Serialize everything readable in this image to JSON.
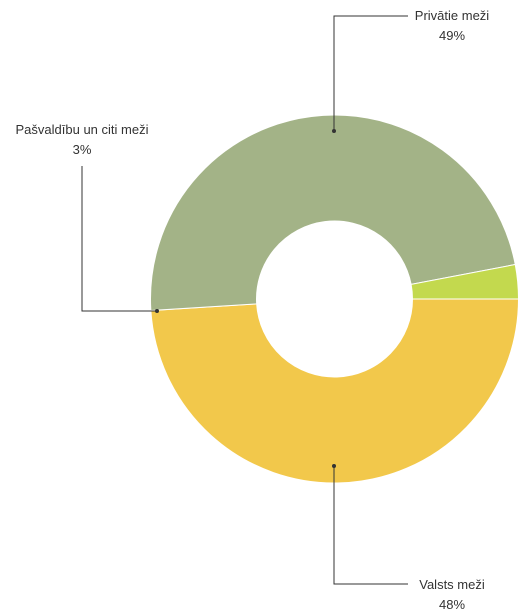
{
  "chart_data": {
    "type": "pie",
    "variant": "donut",
    "title": "",
    "slices": [
      {
        "label": "Privātie meži",
        "value": 49,
        "display": "49%",
        "color": "#f2c84b"
      },
      {
        "label": "Valsts meži",
        "value": 48,
        "display": "48%",
        "color": "#a3b387"
      },
      {
        "label": "Pašvaldību un citi meži",
        "value": 3,
        "display": "3%",
        "color": "#c3d94e"
      }
    ]
  }
}
